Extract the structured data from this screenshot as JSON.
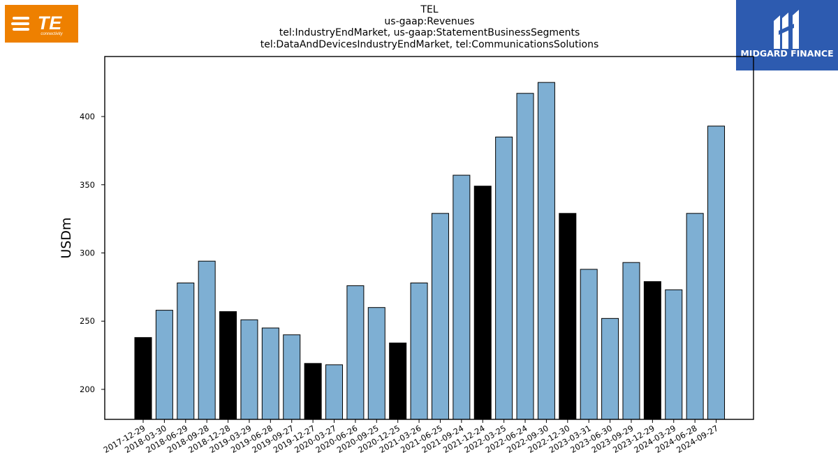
{
  "logos": {
    "left": {
      "text": "TE",
      "subtext": "connectivity",
      "color": "#ee8000"
    },
    "right": {
      "text": "MIDGARD FINANCE",
      "color": "#2d5bb0"
    }
  },
  "chart_data": {
    "type": "bar",
    "title": "TEL",
    "subtitle_lines": [
      "us-gaap:Revenues",
      "tel:IndustryEndMarket, us-gaap:StatementBusinessSegments",
      "tel:DataAndDevicesIndustryEndMarket, tel:CommunicationsSolutions"
    ],
    "xlabel": "",
    "ylabel": "USDm",
    "ylim": [
      178,
      444
    ],
    "yticks": [
      200,
      250,
      300,
      350,
      400
    ],
    "grid": false,
    "categories": [
      "2017-12-29",
      "2018-03-30",
      "2018-06-29",
      "2018-09-28",
      "2018-12-28",
      "2019-03-29",
      "2019-06-28",
      "2019-09-27",
      "2019-12-27",
      "2020-03-27",
      "2020-06-26",
      "2020-09-25",
      "2020-12-25",
      "2021-03-26",
      "2021-06-25",
      "2021-09-24",
      "2021-12-24",
      "2022-03-25",
      "2022-06-24",
      "2022-09-30",
      "2022-12-30",
      "2023-03-31",
      "2023-06-30",
      "2023-09-29",
      "2023-12-29",
      "2024-03-29",
      "2024-06-28",
      "2024-09-27"
    ],
    "values": [
      238,
      258,
      278,
      294,
      257,
      251,
      245,
      240,
      219,
      218,
      276,
      260,
      234,
      278,
      329,
      357,
      349,
      385,
      417,
      425,
      329,
      288,
      252,
      293,
      279,
      273,
      329,
      393
    ],
    "highlight": [
      true,
      false,
      false,
      false,
      true,
      false,
      false,
      false,
      true,
      false,
      false,
      false,
      true,
      false,
      false,
      false,
      true,
      false,
      false,
      false,
      true,
      false,
      false,
      false,
      true,
      false,
      false,
      false
    ],
    "colors": {
      "normal": "#7eafd3",
      "highlight": "#000000",
      "edge": "#000000"
    }
  }
}
